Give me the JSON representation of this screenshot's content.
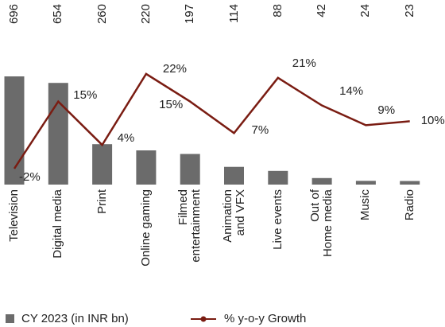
{
  "chart_data": {
    "type": "bar_line",
    "categories": [
      "Television",
      "Digital media",
      "Print",
      "Online gaming",
      "Filmed\nentertainment",
      "Animation\nand VFX",
      "Live events",
      "Out of\nHome media",
      "Music",
      "Radio"
    ],
    "series": [
      {
        "name": "CY 2023 (in INR bn)",
        "type": "bar",
        "color": "#6b6b6b",
        "values": [
          696,
          654,
          260,
          220,
          197,
          114,
          88,
          42,
          24,
          23
        ]
      },
      {
        "name": "% y-o-y Growth",
        "type": "line",
        "color": "#7a1c12",
        "values": [
          -2,
          15,
          4,
          22,
          15,
          7,
          21,
          14,
          9,
          10
        ],
        "value_labels": [
          "-2%",
          "15%",
          "4%",
          "22%",
          "15%",
          "7%",
          "21%",
          "14%",
          "9%",
          "10%"
        ]
      }
    ]
  }
}
